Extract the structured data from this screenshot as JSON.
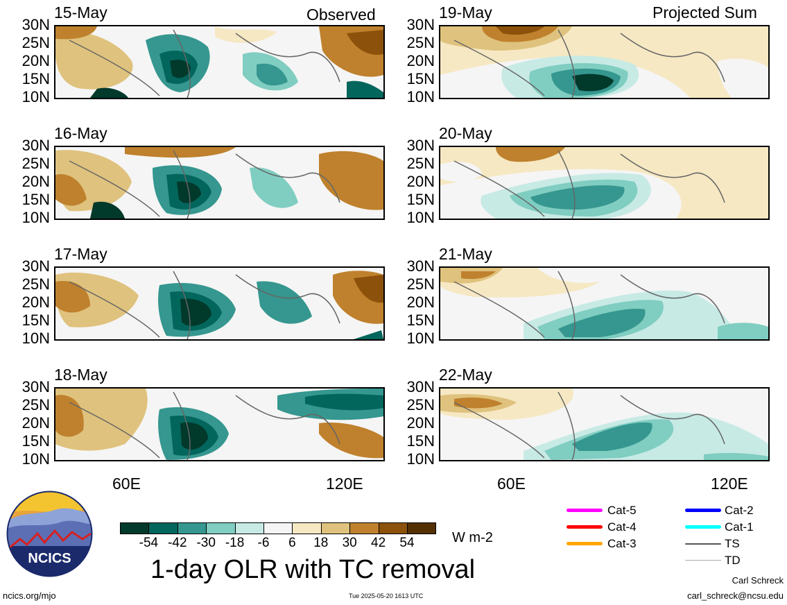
{
  "panels": {
    "observed": [
      {
        "date": "15-May"
      },
      {
        "date": "16-May"
      },
      {
        "date": "17-May"
      },
      {
        "date": "18-May"
      }
    ],
    "projected": [
      {
        "date": "19-May"
      },
      {
        "date": "20-May"
      },
      {
        "date": "21-May"
      },
      {
        "date": "22-May"
      }
    ],
    "observed_label": "Observed",
    "projected_label": "Projected Sum"
  },
  "axes": {
    "lat_ticks": [
      "30N",
      "25N",
      "20N",
      "15N",
      "10N"
    ],
    "lon_ticks": [
      "60E",
      "120E"
    ]
  },
  "colorbar": {
    "colors": [
      "#01392b",
      "#03665d",
      "#35978f",
      "#80cdc1",
      "#c7eae5",
      "#f5f5f5",
      "#f6e8c3",
      "#dfc27d",
      "#bf812d",
      "#8c510a",
      "#543005"
    ],
    "labels": [
      "-54",
      "-42",
      "-30",
      "-18",
      "-6",
      "6",
      "18",
      "30",
      "42",
      "54"
    ],
    "unit": "W m-2"
  },
  "title": "1-day OLR with TC removal",
  "logo": {
    "text": "NCICS"
  },
  "legend": [
    {
      "label": "Cat-5",
      "color": "#ff00ff"
    },
    {
      "label": "Cat-4",
      "color": "#ff0000"
    },
    {
      "label": "Cat-3",
      "color": "#ffa500"
    },
    {
      "label": "Cat-2",
      "color": "#0000ff"
    },
    {
      "label": "Cat-1",
      "color": "#00ffff"
    },
    {
      "label": "TS",
      "color": "#555555"
    },
    {
      "label": "TD",
      "color": "#aaaaaa"
    }
  ],
  "footer": {
    "left": "ncics.org/mjo",
    "center": "Tue 2025-05-20 1613 UTC",
    "right_name": "Carl Schreck",
    "right_email": "carl_schreck@ncsu.edu"
  }
}
